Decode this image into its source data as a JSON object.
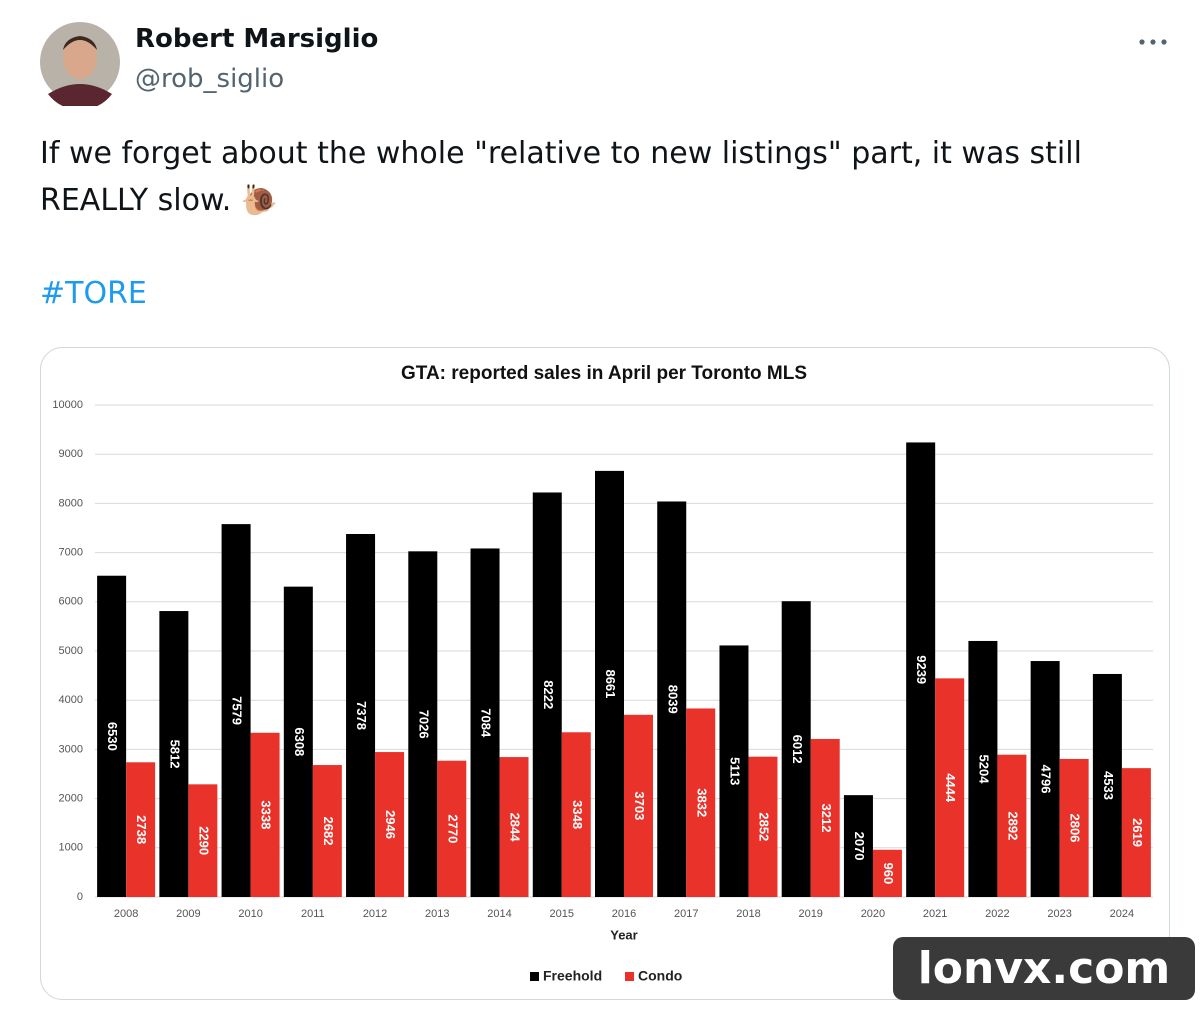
{
  "tweet": {
    "name": "Robert Marsiglio",
    "handle": "@rob_siglio",
    "text": "If we forget about the whole \"relative to new listings\" part, it was still REALLY slow. 🐌",
    "hashtag": "#TORE"
  },
  "chart_data": {
    "type": "bar",
    "title": "GTA: reported sales in April per Toronto MLS",
    "x_label": "Year",
    "categories": [
      "2008",
      "2009",
      "2010",
      "2011",
      "2012",
      "2013",
      "2014",
      "2015",
      "2016",
      "2017",
      "2018",
      "2019",
      "2020",
      "2021",
      "2022",
      "2023",
      "2024"
    ],
    "series": [
      {
        "name": "Freehold",
        "color": "#000000",
        "values": [
          6530,
          5812,
          7579,
          6308,
          7378,
          7026,
          7084,
          8222,
          8661,
          8039,
          5113,
          6012,
          2070,
          9239,
          5204,
          4796,
          4533
        ]
      },
      {
        "name": "Condo",
        "color": "#e8322a",
        "values": [
          2738,
          2290,
          3338,
          2682,
          2946,
          2770,
          2844,
          3348,
          3703,
          3832,
          2852,
          3212,
          960,
          4444,
          2892,
          2806,
          2619
        ]
      }
    ],
    "ylim": [
      0,
      10000
    ],
    "yticks": [
      0,
      1000,
      2000,
      3000,
      4000,
      5000,
      6000,
      7000,
      8000,
      9000,
      10000
    ],
    "grid": true,
    "legend": "bottom"
  },
  "watermark": "lonvx.com"
}
